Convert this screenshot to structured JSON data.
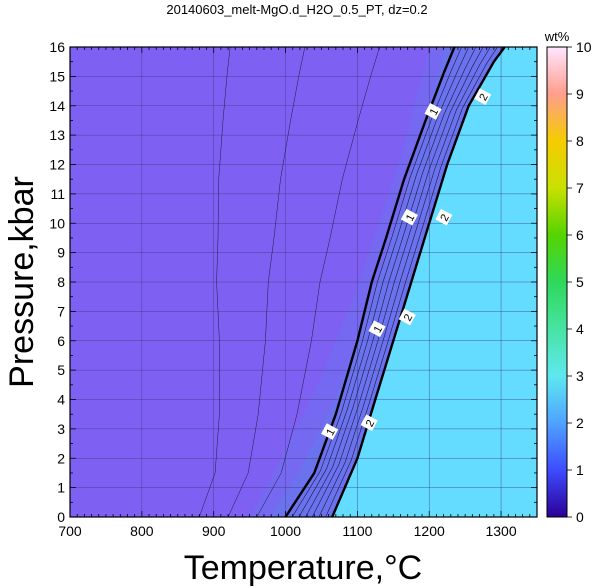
{
  "chart_data": {
    "type": "heatmap",
    "title": "20140603_melt-MgO.d_H2O_0.5_PT, dz=0.2",
    "xlabel": "Temperature,°C",
    "ylabel": "Pressure,kbar",
    "xlim": [
      700,
      1350
    ],
    "ylim": [
      0,
      16
    ],
    "x_ticks": [
      "700",
      "800",
      "900",
      "1000",
      "1100",
      "1200",
      "1300"
    ],
    "y_ticks": [
      "0",
      "1",
      "2",
      "3",
      "4",
      "5",
      "6",
      "7",
      "8",
      "9",
      "10",
      "11",
      "12",
      "13",
      "14",
      "15",
      "16"
    ],
    "grid": true,
    "colorbar": {
      "label": "wt%",
      "range": [
        0,
        10
      ],
      "ticks": [
        "0",
        "1",
        "2",
        "3",
        "4",
        "5",
        "6",
        "7",
        "8",
        "9",
        "10"
      ],
      "position": "right"
    },
    "labeled_contours": [
      {
        "level": "1",
        "points": [
          [
            1000,
            0
          ],
          [
            1040,
            1.5
          ],
          [
            1070,
            3.5
          ],
          [
            1100,
            6
          ],
          [
            1120,
            8
          ],
          [
            1140,
            9.5
          ],
          [
            1165,
            11.5
          ],
          [
            1195,
            13.5
          ],
          [
            1220,
            15.1
          ],
          [
            1235,
            16
          ]
        ],
        "label_positions": [
          [
            1062,
            2.9
          ],
          [
            1128,
            6.4
          ],
          [
            1173,
            10.2
          ],
          [
            1206,
            13.8
          ]
        ]
      },
      {
        "level": "2",
        "points": [
          [
            1065,
            0
          ],
          [
            1100,
            2
          ],
          [
            1125,
            4
          ],
          [
            1150,
            6
          ],
          [
            1175,
            8
          ],
          [
            1200,
            10
          ],
          [
            1225,
            12
          ],
          [
            1255,
            14
          ],
          [
            1290,
            15.5
          ],
          [
            1305,
            16
          ]
        ],
        "label_positions": [
          [
            1117,
            3.2
          ],
          [
            1170,
            6.8
          ],
          [
            1221,
            10.2
          ],
          [
            1275,
            14.3
          ]
        ]
      }
    ]
  },
  "colors": {
    "low": "#7e61f2",
    "mid": "#6a73ee",
    "high": "#63dcff"
  }
}
